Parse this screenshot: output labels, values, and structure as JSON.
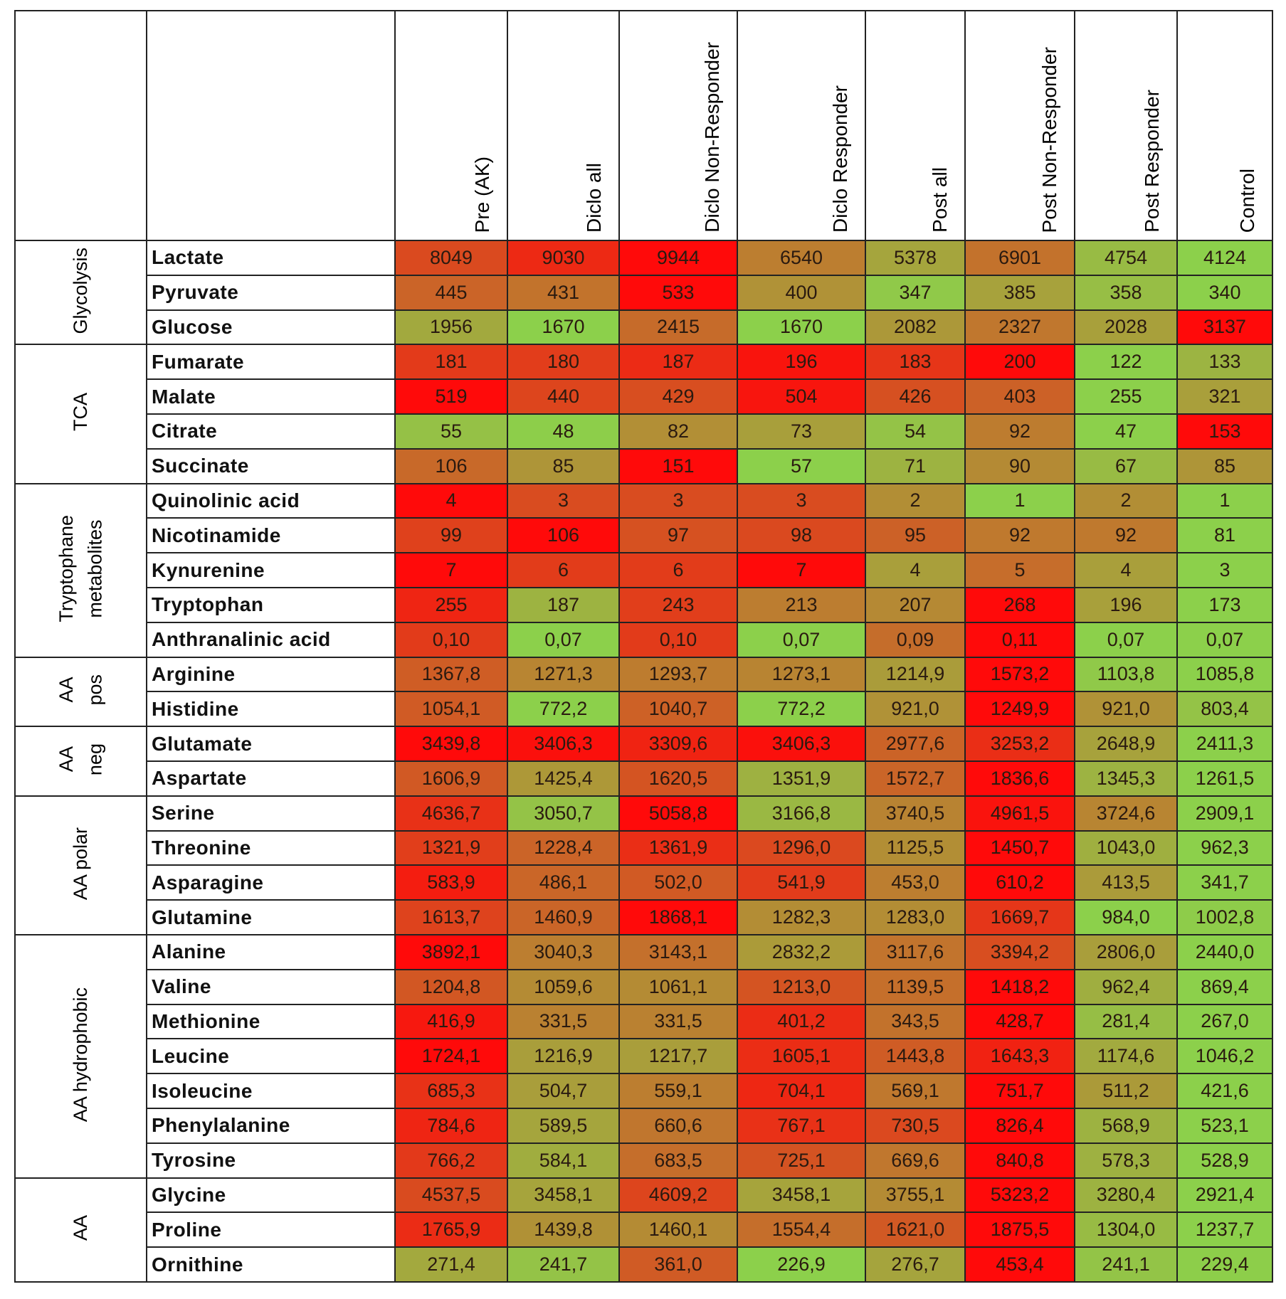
{
  "columns": [
    "Pre (AK)",
    "Diclo all",
    "Diclo Non-Responder",
    "Diclo Responder",
    "Post all",
    "Post Non-Responder",
    "Post Responder",
    "Control"
  ],
  "groups": [
    {
      "label": "Glycolysis",
      "rows": [
        [
          "Lactate",
          [
            "8049",
            "9030",
            "9944",
            "6540",
            "5378",
            "6901",
            "4754",
            "4124"
          ]
        ],
        [
          "Pyruvate",
          [
            "445",
            "431",
            "533",
            "400",
            "347",
            "385",
            "358",
            "340"
          ]
        ],
        [
          "Glucose",
          [
            "1956",
            "1670",
            "2415",
            "1670",
            "2082",
            "2327",
            "2028",
            "3137"
          ]
        ]
      ]
    },
    {
      "label": "TCA",
      "rows": [
        [
          "Fumarate",
          [
            "181",
            "180",
            "187",
            "196",
            "183",
            "200",
            "122",
            "133"
          ]
        ],
        [
          "Malate",
          [
            "519",
            "440",
            "429",
            "504",
            "426",
            "403",
            "255",
            "321"
          ]
        ],
        [
          "Citrate",
          [
            "55",
            "48",
            "82",
            "73",
            "54",
            "92",
            "47",
            "153"
          ]
        ],
        [
          "Succinate",
          [
            "106",
            "85",
            "151",
            "57",
            "71",
            "90",
            "67",
            "85"
          ]
        ]
      ]
    },
    {
      "label": "Tryptophane\nmetabolites",
      "rows": [
        [
          "Quinolinic acid",
          [
            "4",
            "3",
            "3",
            "3",
            "2",
            "1",
            "2",
            "1"
          ]
        ],
        [
          "Nicotinamide",
          [
            "99",
            "106",
            "97",
            "98",
            "95",
            "92",
            "92",
            "81"
          ]
        ],
        [
          "Kynurenine",
          [
            "7",
            "6",
            "6",
            "7",
            "4",
            "5",
            "4",
            "3"
          ]
        ],
        [
          "Tryptophan",
          [
            "255",
            "187",
            "243",
            "213",
            "207",
            "268",
            "196",
            "173"
          ]
        ],
        [
          "Anthranalinic acid",
          [
            "0,10",
            "0,07",
            "0,10",
            "0,07",
            "0,09",
            "0,11",
            "0,07",
            "0,07"
          ]
        ]
      ]
    },
    {
      "label": "AA\npos",
      "rows": [
        [
          "Arginine",
          [
            "1367,8",
            "1271,3",
            "1293,7",
            "1273,1",
            "1214,9",
            "1573,2",
            "1103,8",
            "1085,8"
          ]
        ],
        [
          "Histidine",
          [
            "1054,1",
            "772,2",
            "1040,7",
            "772,2",
            "921,0",
            "1249,9",
            "921,0",
            "803,4"
          ]
        ]
      ]
    },
    {
      "label": "AA\nneg",
      "rows": [
        [
          "Glutamate",
          [
            "3439,8",
            "3406,3",
            "3309,6",
            "3406,3",
            "2977,6",
            "3253,2",
            "2648,9",
            "2411,3"
          ]
        ],
        [
          "Aspartate",
          [
            "1606,9",
            "1425,4",
            "1620,5",
            "1351,9",
            "1572,7",
            "1836,6",
            "1345,3",
            "1261,5"
          ]
        ]
      ]
    },
    {
      "label": "AA polar",
      "rows": [
        [
          "Serine",
          [
            "4636,7",
            "3050,7",
            "5058,8",
            "3166,8",
            "3740,5",
            "4961,5",
            "3724,6",
            "2909,1"
          ]
        ],
        [
          "Threonine",
          [
            "1321,9",
            "1228,4",
            "1361,9",
            "1296,0",
            "1125,5",
            "1450,7",
            "1043,0",
            "962,3"
          ]
        ],
        [
          "Asparagine",
          [
            "583,9",
            "486,1",
            "502,0",
            "541,9",
            "453,0",
            "610,2",
            "413,5",
            "341,7"
          ]
        ],
        [
          "Glutamine",
          [
            "1613,7",
            "1460,9",
            "1868,1",
            "1282,3",
            "1283,0",
            "1669,7",
            "984,0",
            "1002,8"
          ]
        ]
      ]
    },
    {
      "label": "AA hydrophobic",
      "rows": [
        [
          "Alanine",
          [
            "3892,1",
            "3040,3",
            "3143,1",
            "2832,2",
            "3117,6",
            "3394,2",
            "2806,0",
            "2440,0"
          ]
        ],
        [
          "Valine",
          [
            "1204,8",
            "1059,6",
            "1061,1",
            "1213,0",
            "1139,5",
            "1418,2",
            "962,4",
            "869,4"
          ]
        ],
        [
          "Methionine",
          [
            "416,9",
            "331,5",
            "331,5",
            "401,2",
            "343,5",
            "428,7",
            "281,4",
            "267,0"
          ]
        ],
        [
          "Leucine",
          [
            "1724,1",
            "1216,9",
            "1217,7",
            "1605,1",
            "1443,8",
            "1643,3",
            "1174,6",
            "1046,2"
          ]
        ],
        [
          "Isoleucine",
          [
            "685,3",
            "504,7",
            "559,1",
            "704,1",
            "569,1",
            "751,7",
            "511,2",
            "421,6"
          ]
        ],
        [
          "Phenylalanine",
          [
            "784,6",
            "589,5",
            "660,6",
            "767,1",
            "730,5",
            "826,4",
            "568,9",
            "523,1"
          ]
        ],
        [
          "Tyrosine",
          [
            "766,2",
            "584,1",
            "683,5",
            "725,1",
            "669,6",
            "840,8",
            "578,3",
            "528,9"
          ]
        ]
      ]
    },
    {
      "label": "AA",
      "rows": [
        [
          "Glycine",
          [
            "4537,5",
            "3458,1",
            "4609,2",
            "3458,1",
            "3755,1",
            "5323,2",
            "3280,4",
            "2921,4"
          ]
        ],
        [
          "Proline",
          [
            "1765,9",
            "1439,8",
            "1460,1",
            "1554,4",
            "1621,0",
            "1875,5",
            "1304,0",
            "1237,7"
          ]
        ],
        [
          "Ornithine",
          [
            "271,4",
            "241,7",
            "361,0",
            "226,9",
            "276,7",
            "453,4",
            "241,1",
            "229,4"
          ]
        ]
      ]
    }
  ],
  "colors": {
    "low": "#8cd04b",
    "high": "#ff0a0a"
  }
}
